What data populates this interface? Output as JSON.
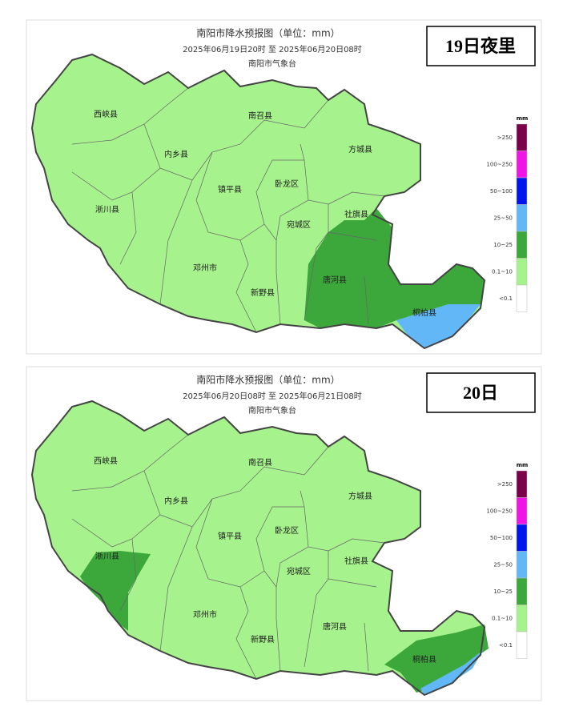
{
  "panels": [
    {
      "title": "南阳市降水预报图（单位：mm）",
      "period": "2025年06月19日20时  至  2025年06月20日08时",
      "source": "南阳市气象台",
      "tag": "19日夜里",
      "counties": [
        "西峡县",
        "南召县",
        "内乡县",
        "方城县",
        "镇平县",
        "卧龙区",
        "淅川县",
        "社旗县",
        "宛城区",
        "唐河县",
        "邓州市",
        "新野县",
        "桐柏县"
      ],
      "legend": {
        "unit": "mm",
        "items": [
          {
            "label": ">250",
            "color": "#7b0049"
          },
          {
            "label": "100~250",
            "color": "#f014e6"
          },
          {
            "label": "50~100",
            "color": "#0014f0"
          },
          {
            "label": "25~50",
            "color": "#62b8f7"
          },
          {
            "label": "10~25",
            "color": "#3ca83c"
          },
          {
            "label": "0.1~10",
            "color": "#a6f28c"
          },
          {
            "label": "<0.1",
            "color": "#ffffff"
          }
        ]
      }
    },
    {
      "title": "南阳市降水预报图（单位：mm）",
      "period": "2025年06月20日08时  至  2025年06月21日08时",
      "source": "南阳市气象台",
      "tag": "20日",
      "counties": [
        "西峡县",
        "南召县",
        "内乡县",
        "方城县",
        "镇平县",
        "卧龙区",
        "淅川县",
        "社旗县",
        "宛城区",
        "唐河县",
        "邓州市",
        "新野县",
        "桐柏县"
      ],
      "legend": {
        "unit": "mm",
        "items": [
          {
            "label": ">250",
            "color": "#7b0049"
          },
          {
            "label": "100~250",
            "color": "#f014e6"
          },
          {
            "label": "50~100",
            "color": "#0014f0"
          },
          {
            "label": "25~50",
            "color": "#62b8f7"
          },
          {
            "label": "10~25",
            "color": "#3ca83c"
          },
          {
            "label": "0.1~10",
            "color": "#a6f28c"
          },
          {
            "label": "<0.1",
            "color": "#ffffff"
          }
        ]
      }
    }
  ]
}
